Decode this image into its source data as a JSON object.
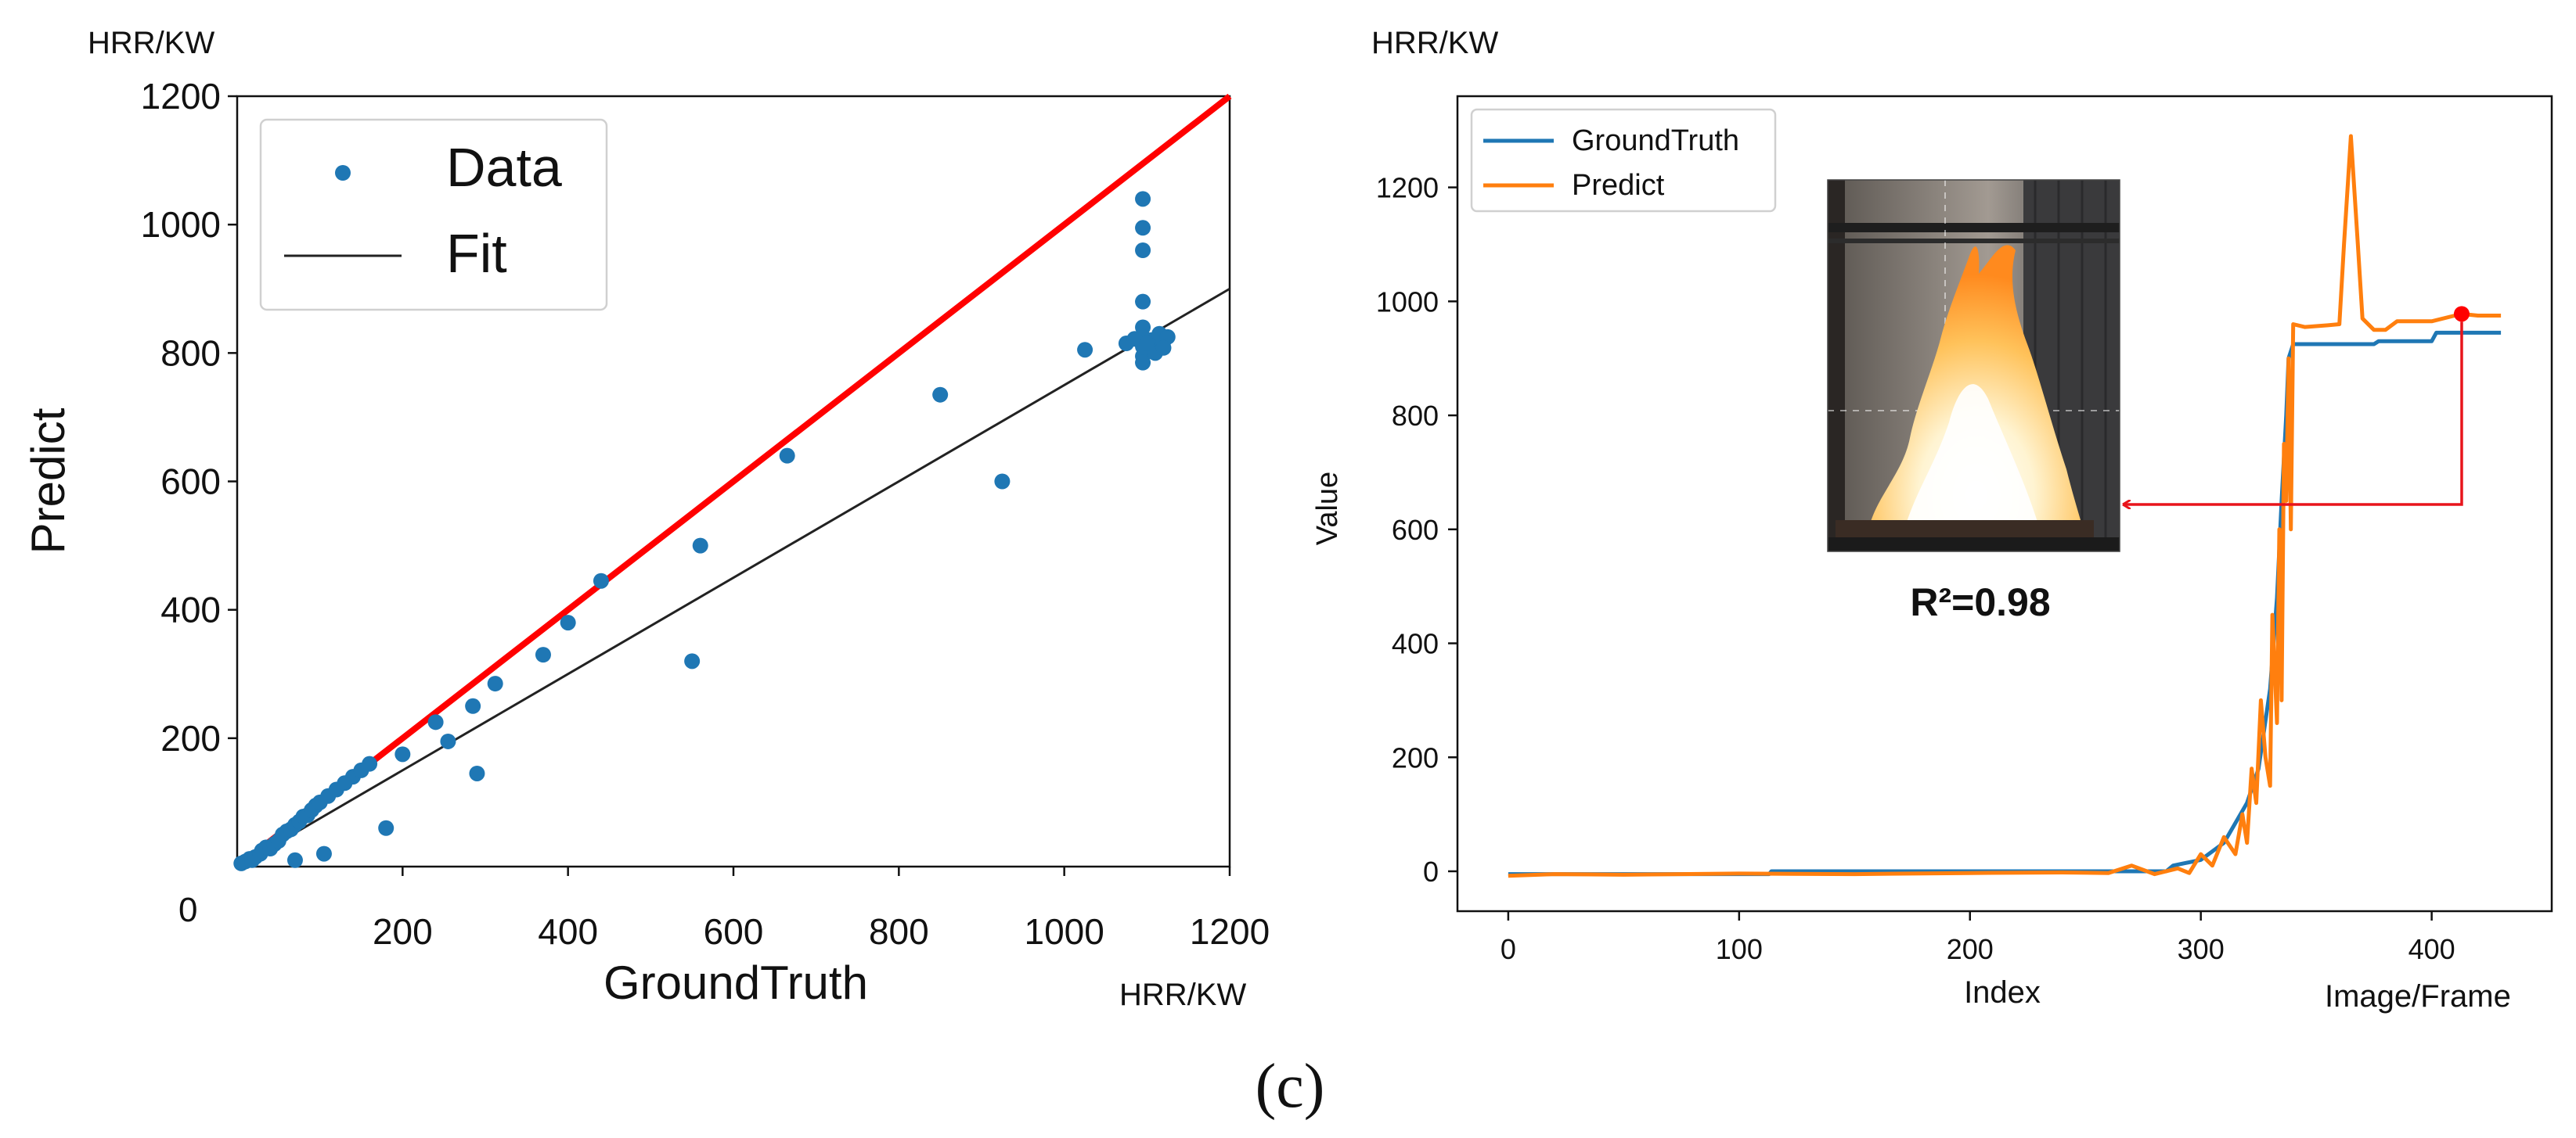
{
  "figure_label": "(c)",
  "colors": {
    "scatter_point": "#1f77b4",
    "identity_line": "#ff0000",
    "fit_line": "#222222",
    "ground_truth": "#1f77b4",
    "predict": "#ff7f0e",
    "annotation_arrow": "#e8141b"
  },
  "chart_data": [
    {
      "type": "scatter",
      "xlabel": "GroundTruth",
      "ylabel": "Predict",
      "x_unit_label": "HRR/KW",
      "y_unit_label": "HRR/KW",
      "origin_label": "0",
      "xlim": [
        0,
        1200
      ],
      "ylim": [
        0,
        1200
      ],
      "x_ticks": [
        200,
        400,
        600,
        800,
        1000,
        1200
      ],
      "y_ticks": [
        200,
        400,
        600,
        800,
        1000,
        1200
      ],
      "grid": false,
      "legend_position": "top-left",
      "legend": [
        {
          "label": "Data",
          "marker": "dot"
        },
        {
          "label": "Fit",
          "marker": "line"
        }
      ],
      "series": [
        {
          "name": "Data",
          "points": [
            [
              5,
              5
            ],
            [
              10,
              8
            ],
            [
              15,
              12
            ],
            [
              18,
              10
            ],
            [
              22,
              15
            ],
            [
              28,
              20
            ],
            [
              30,
              25
            ],
            [
              35,
              30
            ],
            [
              40,
              28
            ],
            [
              45,
              35
            ],
            [
              50,
              40
            ],
            [
              55,
              50
            ],
            [
              60,
              55
            ],
            [
              65,
              58
            ],
            [
              70,
              65
            ],
            [
              75,
              70
            ],
            [
              80,
              78
            ],
            [
              85,
              80
            ],
            [
              90,
              88
            ],
            [
              95,
              95
            ],
            [
              100,
              100
            ],
            [
              110,
              110
            ],
            [
              120,
              120
            ],
            [
              130,
              130
            ],
            [
              140,
              140
            ],
            [
              150,
              150
            ],
            [
              160,
              160
            ],
            [
              70,
              10
            ],
            [
              105,
              20
            ],
            [
              180,
              60
            ],
            [
              200,
              175
            ],
            [
              255,
              195
            ],
            [
              240,
              225
            ],
            [
              285,
              250
            ],
            [
              290,
              145
            ],
            [
              312,
              285
            ],
            [
              370,
              330
            ],
            [
              400,
              380
            ],
            [
              440,
              445
            ],
            [
              550,
              320
            ],
            [
              560,
              500
            ],
            [
              665,
              640
            ],
            [
              850,
              735
            ],
            [
              925,
              600
            ],
            [
              1025,
              805
            ],
            [
              1075,
              815
            ],
            [
              1095,
              1040
            ],
            [
              1095,
              995
            ],
            [
              1095,
              960
            ],
            [
              1095,
              880
            ],
            [
              1095,
              840
            ],
            [
              1095,
              825
            ],
            [
              1095,
              810
            ],
            [
              1095,
              795
            ],
            [
              1095,
              785
            ],
            [
              1105,
              820
            ],
            [
              1110,
              812
            ],
            [
              1115,
              830
            ],
            [
              1120,
              818
            ],
            [
              1125,
              825
            ],
            [
              1110,
              800
            ],
            [
              1120,
              808
            ],
            [
              1085,
              822
            ],
            [
              1100,
              815
            ]
          ]
        },
        {
          "name": "Fit",
          "line": [
            [
              0,
              0
            ],
            [
              1200,
              900
            ]
          ]
        },
        {
          "name": "identity",
          "line": [
            [
              0,
              0
            ],
            [
              1200,
              1200
            ]
          ]
        }
      ]
    },
    {
      "type": "line",
      "xlabel": "Index",
      "ylabel": "Value",
      "x_unit_label": "Image/Frame",
      "y_unit_label": "HRR/KW",
      "xlim": [
        -22,
        452
      ],
      "ylim": [
        -70,
        1360
      ],
      "x_ticks": [
        0,
        100,
        200,
        300,
        400
      ],
      "y_ticks": [
        0,
        200,
        400,
        600,
        800,
        1000,
        1200
      ],
      "grid": false,
      "legend_position": "top-left",
      "annotation": "R²=0.98",
      "highlight_point": [
        413,
        978
      ],
      "series": [
        {
          "name": "GroundTruth",
          "points": [
            [
              0,
              -5
            ],
            [
              113,
              -5
            ],
            [
              114,
              0
            ],
            [
              200,
              0
            ],
            [
              285,
              0
            ],
            [
              288,
              10
            ],
            [
              300,
              20
            ],
            [
              310,
              50
            ],
            [
              320,
              120
            ],
            [
              325,
              180
            ],
            [
              330,
              320
            ],
            [
              333,
              480
            ],
            [
              335,
              650
            ],
            [
              337,
              800
            ],
            [
              338,
              900
            ],
            [
              340,
              925
            ],
            [
              350,
              925
            ],
            [
              375,
              925
            ],
            [
              377,
              930
            ],
            [
              400,
              930
            ],
            [
              402,
              945
            ],
            [
              430,
              945
            ]
          ]
        },
        {
          "name": "Predict",
          "points": [
            [
              0,
              -8
            ],
            [
              20,
              -5
            ],
            [
              50,
              -6
            ],
            [
              100,
              -4
            ],
            [
              150,
              -5
            ],
            [
              200,
              -3
            ],
            [
              240,
              -2
            ],
            [
              260,
              -3
            ],
            [
              270,
              10
            ],
            [
              280,
              -5
            ],
            [
              290,
              5
            ],
            [
              295,
              -3
            ],
            [
              300,
              30
            ],
            [
              305,
              10
            ],
            [
              310,
              60
            ],
            [
              315,
              30
            ],
            [
              318,
              100
            ],
            [
              320,
              50
            ],
            [
              322,
              180
            ],
            [
              324,
              120
            ],
            [
              326,
              300
            ],
            [
              328,
              200
            ],
            [
              330,
              150
            ],
            [
              331,
              450
            ],
            [
              333,
              260
            ],
            [
              334,
              600
            ],
            [
              335,
              300
            ],
            [
              336,
              750
            ],
            [
              337,
              650
            ],
            [
              338,
              900
            ],
            [
              339,
              600
            ],
            [
              340,
              960
            ],
            [
              345,
              955
            ],
            [
              355,
              958
            ],
            [
              360,
              960
            ],
            [
              362,
              1100
            ],
            [
              365,
              1290
            ],
            [
              368,
              1100
            ],
            [
              370,
              970
            ],
            [
              375,
              950
            ],
            [
              380,
              950
            ],
            [
              385,
              965
            ],
            [
              400,
              965
            ],
            [
              410,
              975
            ],
            [
              413,
              978
            ],
            [
              420,
              975
            ],
            [
              430,
              975
            ]
          ]
        }
      ]
    }
  ]
}
